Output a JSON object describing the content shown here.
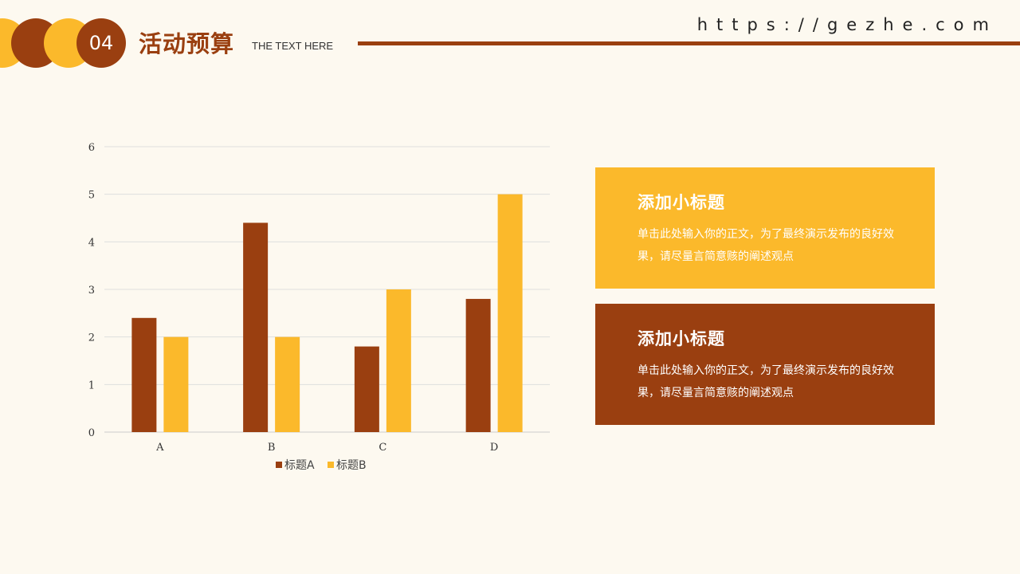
{
  "header": {
    "number": "04",
    "title": "活动预算",
    "subtitle": "THE TEXT HERE",
    "url": "https://gezhe.com"
  },
  "colors": {
    "brown": "#9a3f10",
    "yellow": "#fbb92b",
    "background": "#fdf9f0"
  },
  "cards": [
    {
      "title": "添加小标题",
      "body": "单击此处输入你的正文，为了最终演示发布的良好效果，请尽量言简意赅的阐述观点"
    },
    {
      "title": "添加小标题",
      "body": "单击此处输入你的正文，为了最终演示发布的良好效果，请尽量言简意赅的阐述观点"
    }
  ],
  "chart_data": {
    "type": "bar",
    "categories": [
      "A",
      "B",
      "C",
      "D"
    ],
    "series": [
      {
        "name": "标题A",
        "values": [
          2.4,
          4.4,
          1.8,
          2.8
        ],
        "color": "#9a3f10"
      },
      {
        "name": "标题B",
        "values": [
          2,
          2,
          3,
          5
        ],
        "color": "#fbb92b"
      }
    ],
    "ylim": [
      0,
      6
    ],
    "yticks": [
      0,
      1,
      2,
      3,
      4,
      5,
      6
    ],
    "grid": true,
    "legend": "bottom"
  }
}
